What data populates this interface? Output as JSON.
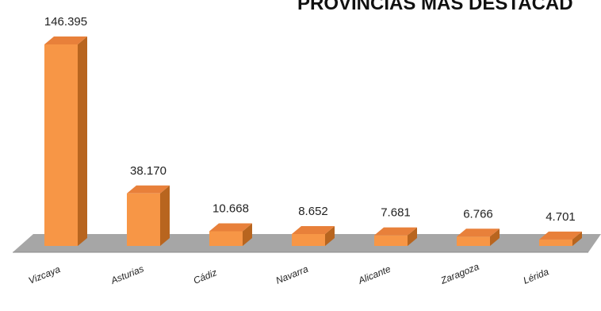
{
  "chart_data": {
    "type": "bar",
    "title": "PROVINCIAS MÁS DESTACAD",
    "categories": [
      "Vizcaya",
      "Asturias",
      "Cádiz",
      "Navarra",
      "Alicante",
      "Zaragoza",
      "Lérida"
    ],
    "values": [
      146395,
      38170,
      10668,
      8652,
      7681,
      6766,
      4701
    ],
    "data_labels": [
      "146.395",
      "38.170",
      "10.668",
      "8.652",
      "7.681",
      "6.766",
      "4.701"
    ],
    "xlabel": "",
    "ylabel": "",
    "ylim": [
      0,
      146395
    ],
    "grid": false,
    "legend": "none",
    "style": "3d-column",
    "colors": {
      "bar_front": "#f79646",
      "bar_top": "#e8803a",
      "bar_side": "#b8651f",
      "floor": "#a6a6a6",
      "floor_edge": "#8c8c8c"
    }
  }
}
